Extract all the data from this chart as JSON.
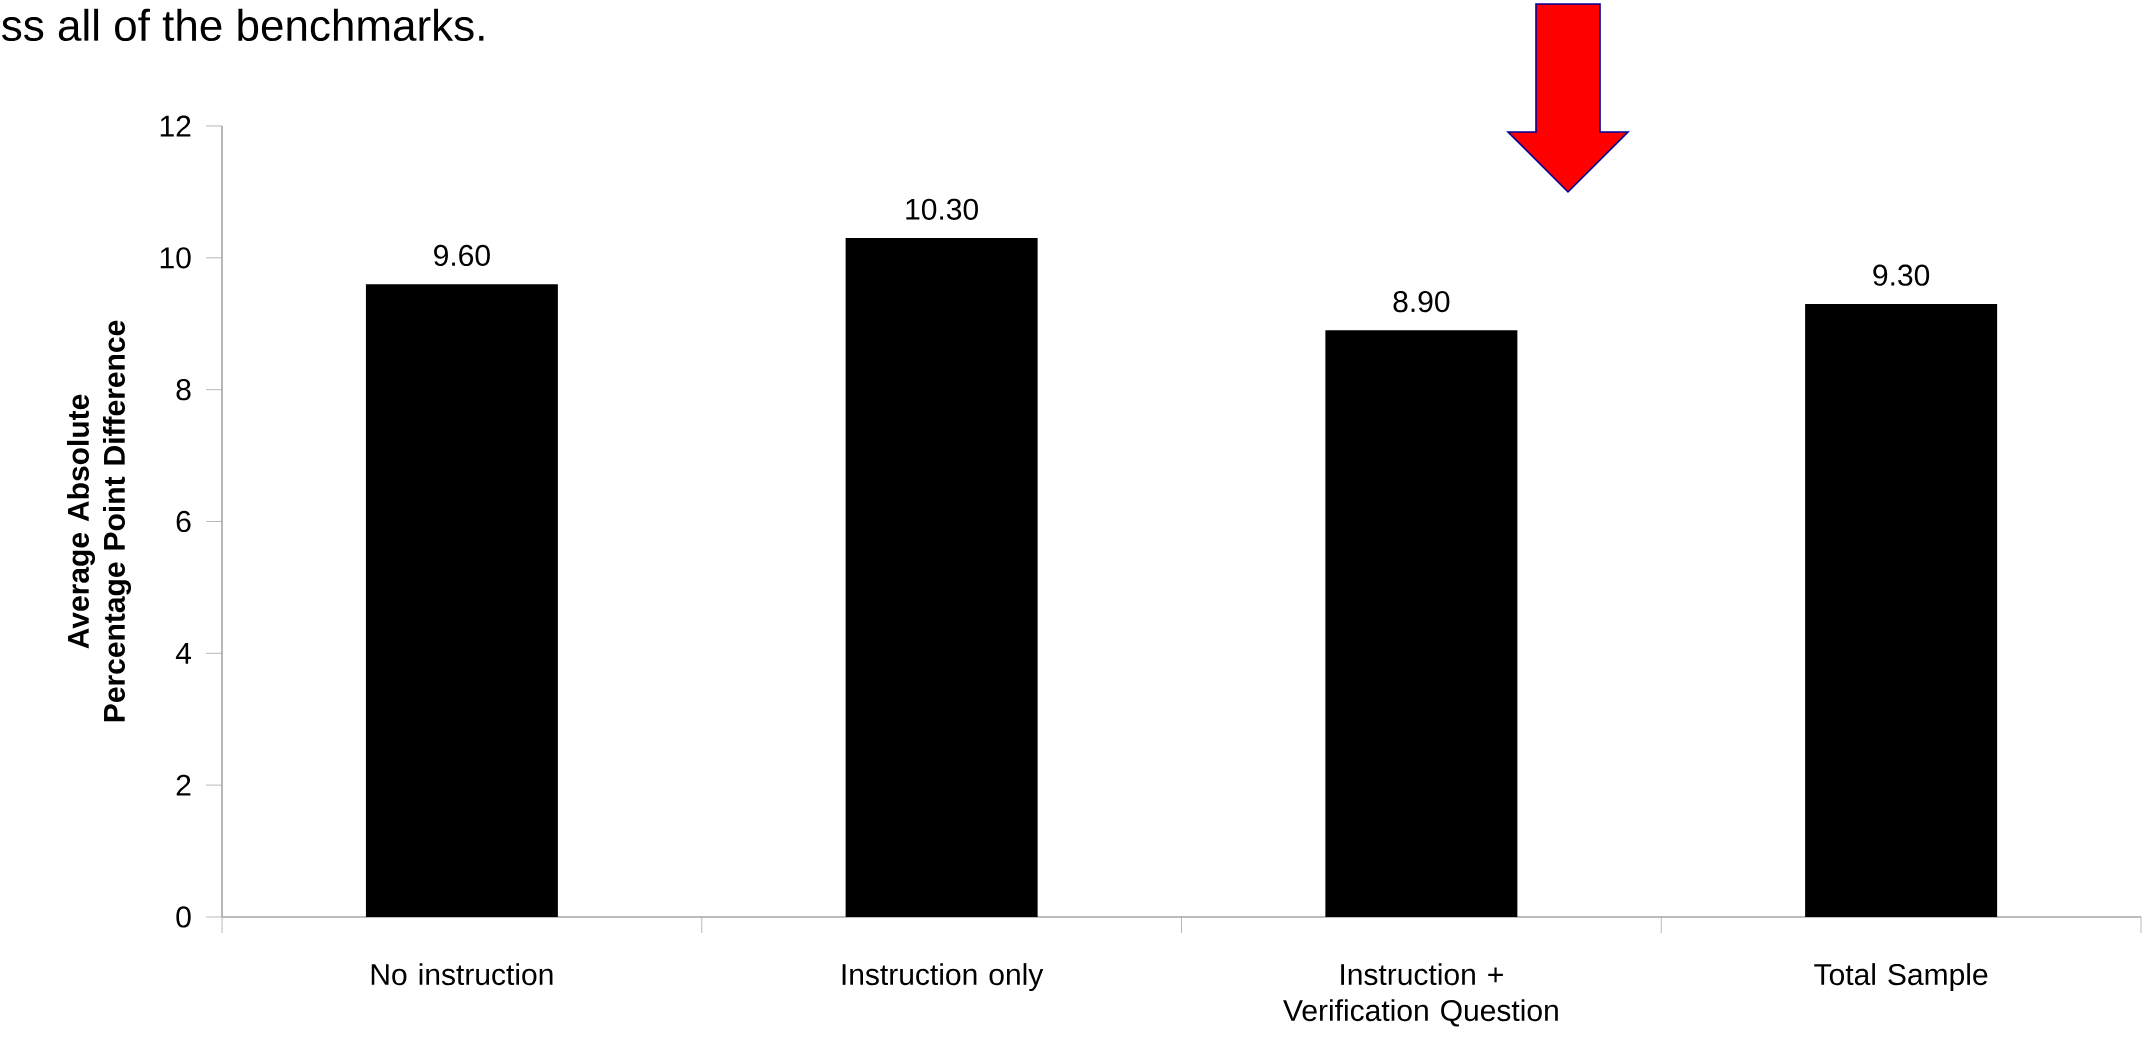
{
  "chart_data": {
    "type": "bar",
    "title": "ss all of the benchmarks.",
    "ylabel": "Average Absolute Percentage Point Difference",
    "categories": [
      "No instruction",
      "Instruction only",
      "Instruction + Verification Question",
      "Total Sample"
    ],
    "values": [
      9.6,
      10.3,
      8.9,
      9.3
    ],
    "value_labels": [
      "9.60",
      "10.30",
      "8.90",
      "9.30"
    ],
    "color": "#000000",
    "ylim": [
      0,
      12
    ],
    "yticks": [
      0,
      2,
      4,
      6,
      8,
      10,
      12
    ],
    "grid": false
  }
}
